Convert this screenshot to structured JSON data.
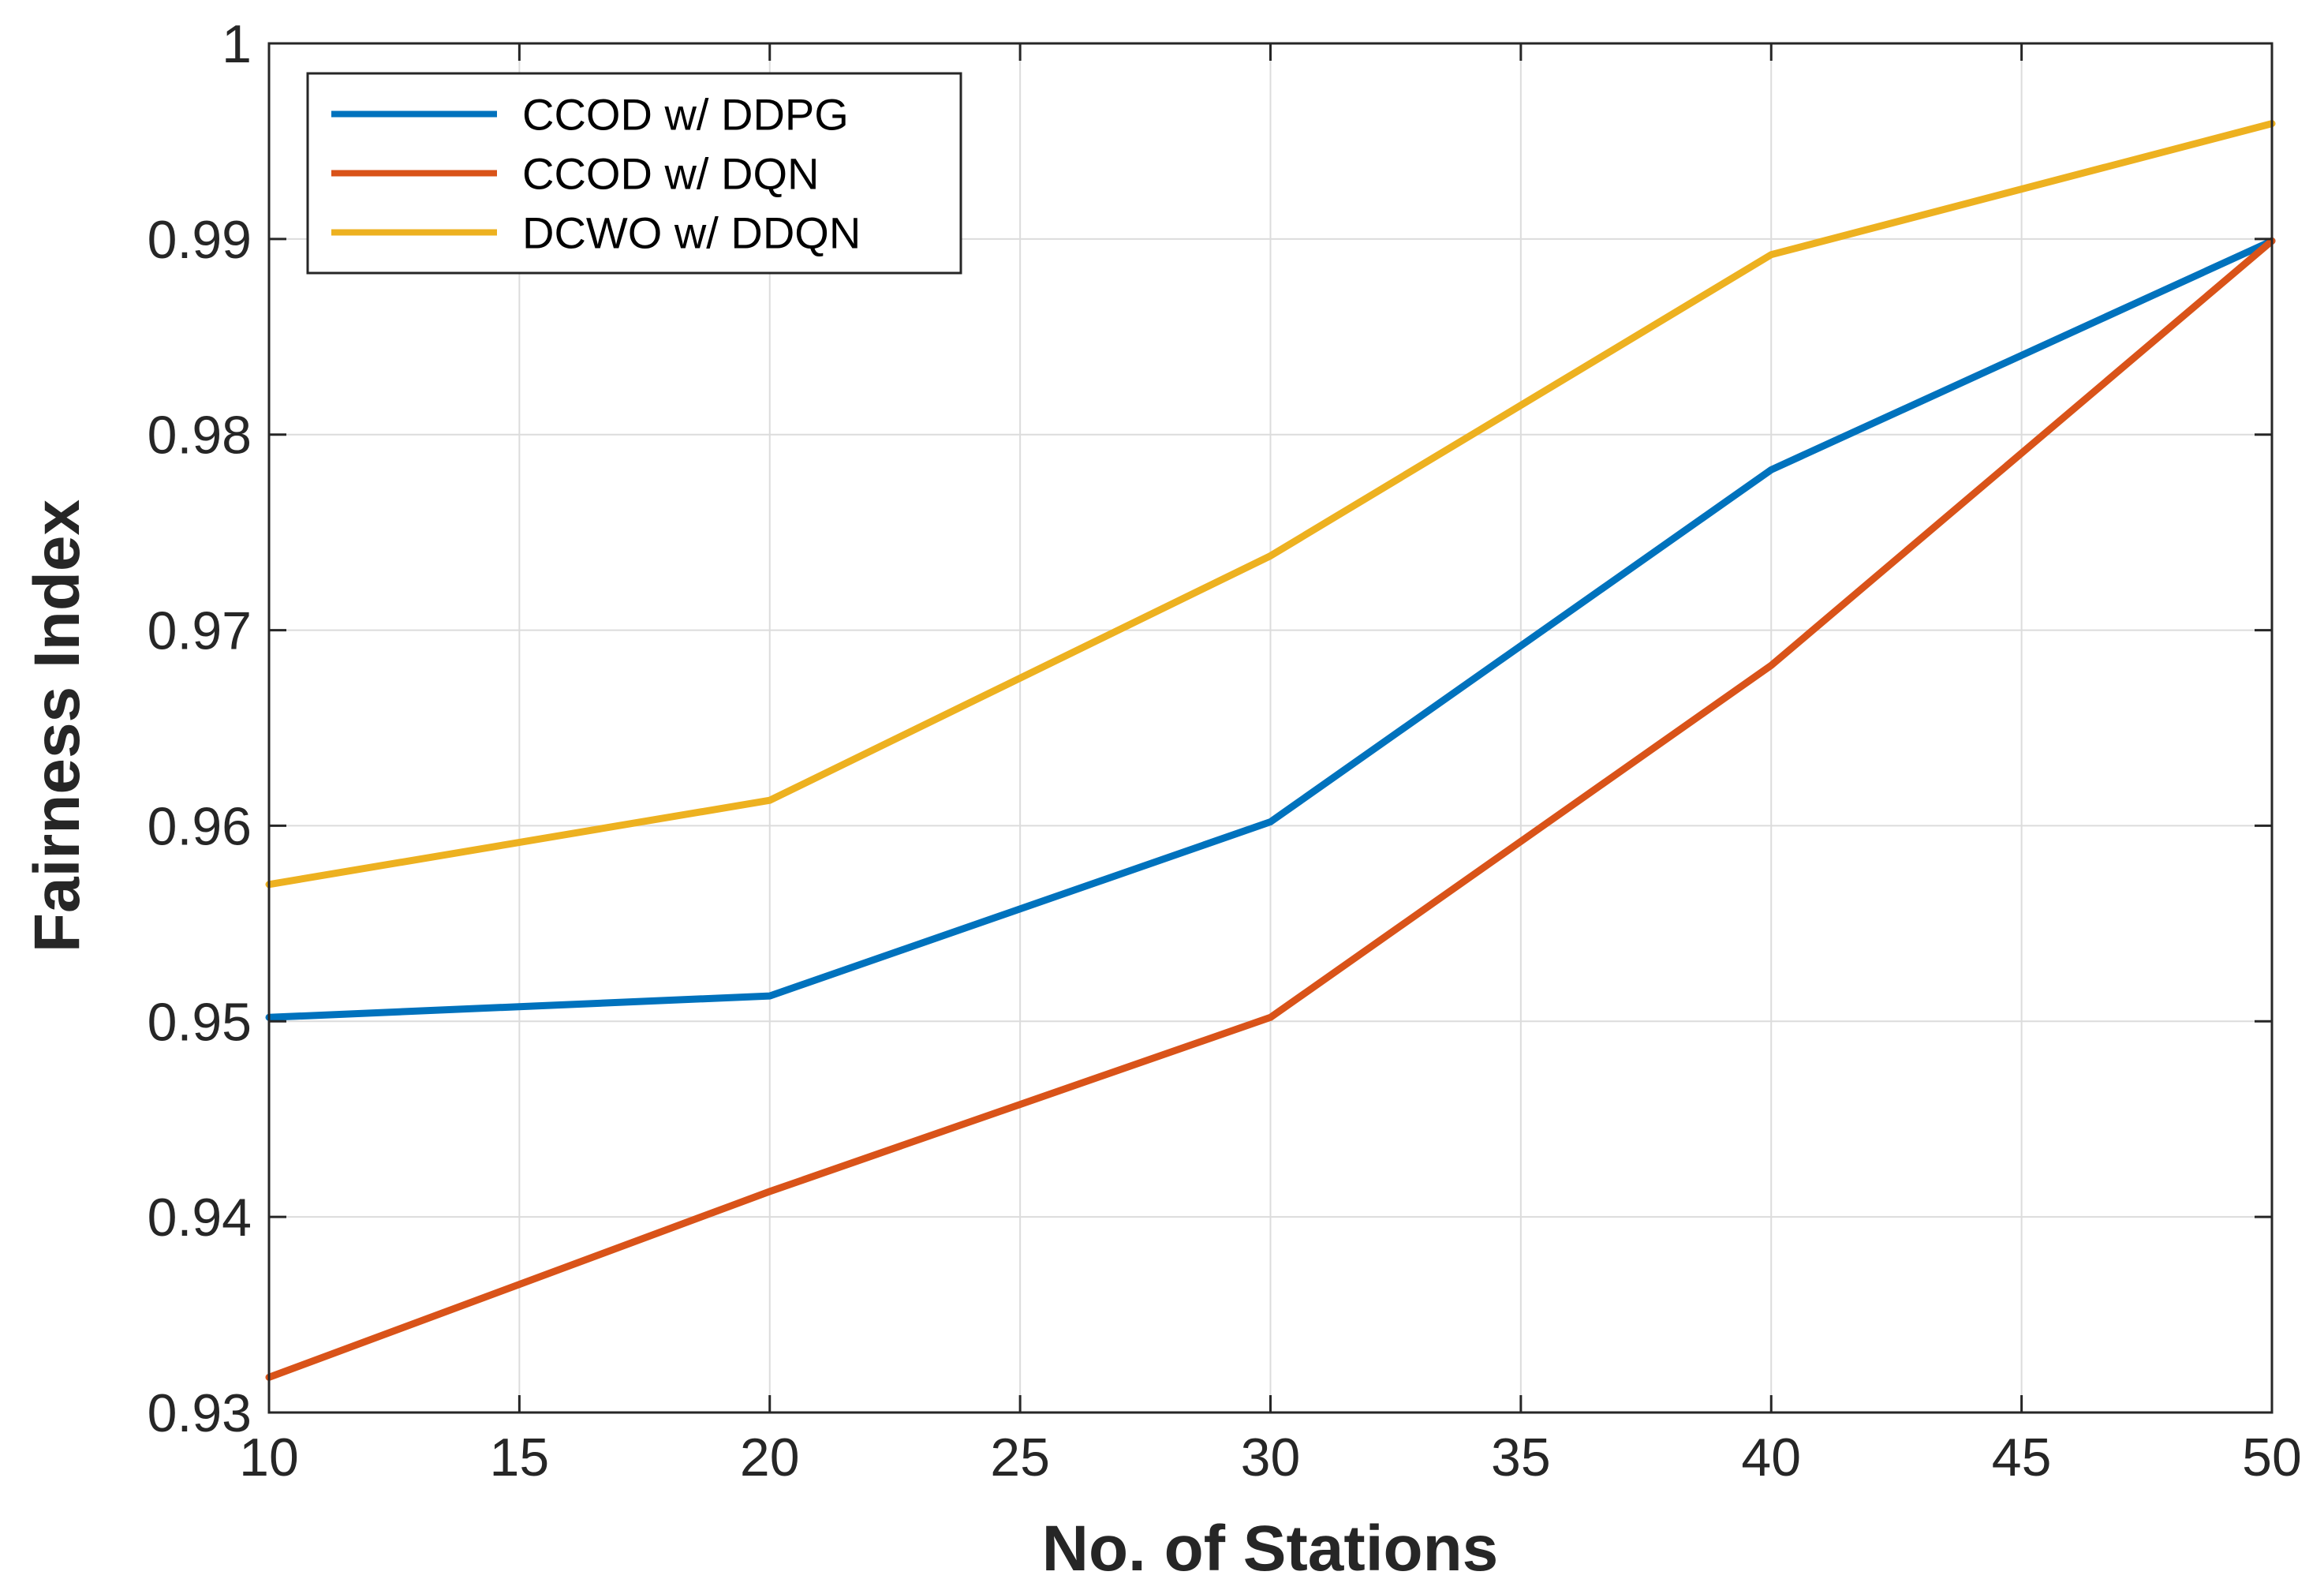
{
  "chart_data": {
    "type": "line",
    "title": "",
    "xlabel": "No. of Stations",
    "ylabel": "Fairness Index",
    "xlim": [
      10,
      50
    ],
    "ylim": [
      0.93,
      1.0
    ],
    "xticks": [
      10,
      15,
      20,
      25,
      30,
      35,
      40,
      45,
      50
    ],
    "xtick_labels": [
      "10",
      "15",
      "20",
      "25",
      "30",
      "35",
      "40",
      "45",
      "50"
    ],
    "yticks": [
      0.93,
      0.94,
      0.95,
      0.96,
      0.97,
      0.98,
      0.99,
      1.0
    ],
    "ytick_labels": [
      "0.93",
      "0.94",
      "0.95",
      "0.96",
      "0.97",
      "0.98",
      "0.99",
      "1"
    ],
    "grid": true,
    "legend_position": "top-left",
    "x": [
      10,
      20,
      30,
      40,
      50
    ],
    "series": [
      {
        "name": "CCOD w/ DDPG",
        "color": "#0072BD",
        "values": [
          0.9502,
          0.9513,
          0.9602,
          0.9782,
          0.9899
        ]
      },
      {
        "name": "CCOD w/ DQN",
        "color": "#D95319",
        "values": [
          0.9318,
          0.9413,
          0.9502,
          0.9682,
          0.9899
        ]
      },
      {
        "name": "DCWO w/ DDQN",
        "color": "#EDB120",
        "values": [
          0.957,
          0.9613,
          0.9738,
          0.9892,
          0.9959
        ]
      }
    ]
  }
}
